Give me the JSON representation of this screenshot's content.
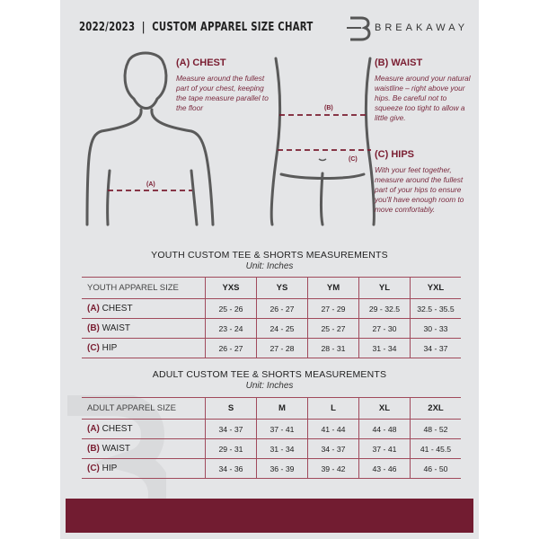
{
  "header": {
    "title": "2022/2023  |  CUSTOM APPAREL SIZE CHART",
    "brand": "BREAKAWAY",
    "logo_letter": "B"
  },
  "guide": {
    "chest": {
      "heading": "(A) CHEST",
      "text": "Measure around the fullest part of your chest, keeping the tape measure parallel to the floor",
      "marker": "(A)"
    },
    "waist": {
      "heading": "(B) WAIST",
      "text": "Measure around your natural waistline – right above your hips. Be careful not to squeeze too tight to allow a little give.",
      "marker": "(B)"
    },
    "hips": {
      "heading": "(C) HIPS",
      "text": "With your feet together, measure around the fullest part of your hips to ensure you'll have enough room to move comfortably.",
      "marker": "(C)"
    }
  },
  "youth": {
    "title": "YOUTH CUSTOM TEE & SHORTS MEASUREMENTS",
    "unit": "Unit: Inches",
    "header": "YOUTH APPAREL SIZE",
    "sizes": [
      "YXS",
      "YS",
      "YM",
      "YL",
      "YXL"
    ],
    "rows": [
      {
        "letter": "(A)",
        "label": "CHEST",
        "values": [
          "25 - 26",
          "26 - 27",
          "27 - 29",
          "29 - 32.5",
          "32.5 - 35.5"
        ]
      },
      {
        "letter": "(B)",
        "label": "WAIST",
        "values": [
          "23 - 24",
          "24 - 25",
          "25 - 27",
          "27 - 30",
          "30 - 33"
        ]
      },
      {
        "letter": "(C)",
        "label": "HIP",
        "values": [
          "26 - 27",
          "27 - 28",
          "28 - 31",
          "31 - 34",
          "34 - 37"
        ]
      }
    ]
  },
  "adult": {
    "title": "ADULT CUSTOM TEE & SHORTS MEASUREMENTS",
    "unit": "Unit: Inches",
    "header": "ADULT APPAREL SIZE",
    "sizes": [
      "S",
      "M",
      "L",
      "XL",
      "2XL"
    ],
    "rows": [
      {
        "letter": "(A)",
        "label": "CHEST",
        "values": [
          "34 - 37",
          "37 - 41",
          "41 - 44",
          "44 - 48",
          "48 - 52"
        ]
      },
      {
        "letter": "(B)",
        "label": "WAIST",
        "values": [
          "29 - 31",
          "31 - 34",
          "34 - 37",
          "37 - 41",
          "41 - 45.5"
        ]
      },
      {
        "letter": "(C)",
        "label": "HIP",
        "values": [
          "34 - 36",
          "36 - 39",
          "39 - 42",
          "43 - 46",
          "46 - 50"
        ]
      }
    ]
  },
  "colors": {
    "accent": "#721c31",
    "background": "#e4e5e7",
    "rule": "#a04a5c"
  }
}
